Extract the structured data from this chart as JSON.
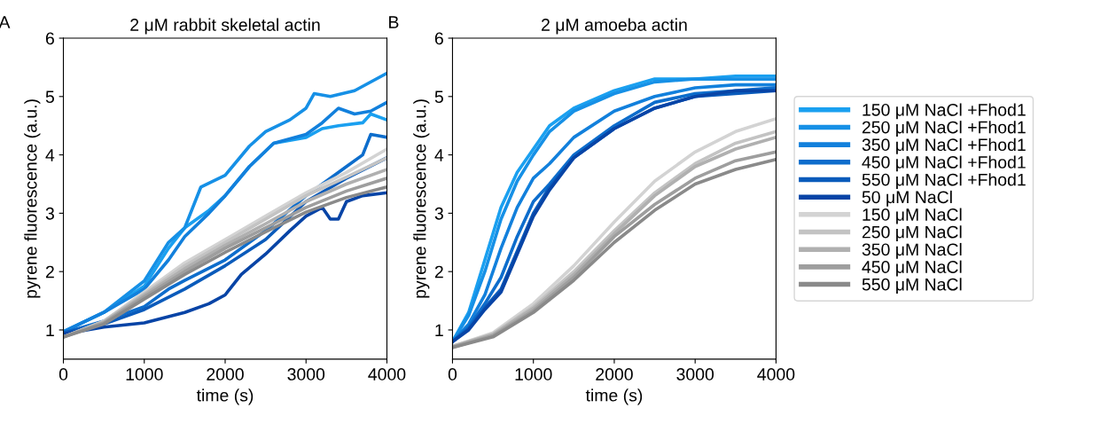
{
  "chart_data": [
    {
      "type": "line",
      "title": "2 μM rabbit skeletal actin",
      "xlabel": "time (s)",
      "ylabel": "pyrene fluorescence (a.u.)",
      "annotations": [
        "A"
      ],
      "xlim": [
        0,
        4000
      ],
      "ylim": [
        0.5,
        6
      ],
      "xticks": [
        0,
        1000,
        2000,
        3000,
        4000
      ],
      "yticks": [
        1,
        2,
        3,
        4,
        5,
        6
      ],
      "grid": false,
      "legend": false,
      "marker": "none",
      "line_style": "solid",
      "series": [
        {
          "color": "#1aa0f0",
          "x": [
            0,
            500,
            1000,
            1300,
            1500,
            1800,
            2000,
            2300,
            2600,
            3000,
            3200,
            3400,
            3700,
            3800,
            4000
          ],
          "values": [
            0.97,
            1.3,
            1.75,
            2.4,
            2.75,
            3.05,
            3.3,
            3.8,
            4.2,
            4.3,
            4.45,
            4.5,
            4.55,
            4.7,
            4.6
          ]
        },
        {
          "color": "#1690e6",
          "x": [
            0,
            500,
            1000,
            1300,
            1500,
            1700,
            2000,
            2300,
            2500,
            2800,
            3000,
            3100,
            3300,
            3600,
            4000
          ],
          "values": [
            0.97,
            1.3,
            1.84,
            2.5,
            2.75,
            3.45,
            3.65,
            4.15,
            4.4,
            4.6,
            4.8,
            5.05,
            5.0,
            5.1,
            5.4
          ]
        },
        {
          "color": "#1280dc",
          "x": [
            0,
            500,
            1000,
            1300,
            1500,
            1800,
            2000,
            2300,
            2600,
            3000,
            3200,
            3400,
            3600,
            3800,
            4000
          ],
          "values": [
            0.97,
            1.3,
            1.7,
            2.2,
            2.6,
            3.0,
            3.3,
            3.8,
            4.2,
            4.35,
            4.55,
            4.8,
            4.7,
            4.75,
            4.9
          ]
        },
        {
          "color": "#0d6dcc",
          "x": [
            0,
            500,
            1000,
            1300,
            1500,
            2000,
            2500,
            3000,
            3300,
            3500,
            3700,
            3800,
            4000
          ],
          "values": [
            0.95,
            1.15,
            1.4,
            1.7,
            1.85,
            2.2,
            2.7,
            3.3,
            3.6,
            3.8,
            4.0,
            4.35,
            4.3
          ]
        },
        {
          "color": "#0a5bbb",
          "x": [
            0,
            500,
            1000,
            1500,
            2000,
            2500,
            3000,
            3500,
            4000
          ],
          "values": [
            0.95,
            1.1,
            1.35,
            1.7,
            2.1,
            2.55,
            3.2,
            3.6,
            3.95
          ]
        },
        {
          "color": "#0744a6",
          "x": [
            0,
            500,
            1000,
            1500,
            1800,
            2000,
            2200,
            2500,
            2800,
            3000,
            3200,
            3300,
            3400,
            3500,
            3700,
            4000
          ],
          "values": [
            0.93,
            1.05,
            1.12,
            1.3,
            1.45,
            1.6,
            1.95,
            2.3,
            2.7,
            2.95,
            3.1,
            2.9,
            2.9,
            3.2,
            3.3,
            3.35
          ]
        },
        {
          "color": "#d3d3d3",
          "x": [
            0,
            500,
            1000,
            1500,
            2000,
            2500,
            3000,
            3500,
            4000
          ],
          "values": [
            0.88,
            1.15,
            1.65,
            2.15,
            2.55,
            2.95,
            3.35,
            3.7,
            4.1
          ]
        },
        {
          "color": "#c3c3c3",
          "x": [
            0,
            500,
            1000,
            1500,
            2000,
            2500,
            3000,
            3500,
            4000
          ],
          "values": [
            0.88,
            1.15,
            1.62,
            2.1,
            2.5,
            2.9,
            3.3,
            3.62,
            3.95
          ]
        },
        {
          "color": "#b0b0b0",
          "x": [
            0,
            500,
            1000,
            1500,
            2000,
            2500,
            3000,
            3500,
            4000
          ],
          "values": [
            0.88,
            1.13,
            1.6,
            2.05,
            2.45,
            2.82,
            3.2,
            3.5,
            3.75
          ]
        },
        {
          "color": "#9e9e9e",
          "x": [
            0,
            500,
            1000,
            1500,
            2000,
            2500,
            3000,
            3500,
            4000
          ],
          "values": [
            0.88,
            1.12,
            1.57,
            2.0,
            2.4,
            2.75,
            3.1,
            3.38,
            3.6
          ]
        },
        {
          "color": "#8a8a8a",
          "x": [
            0,
            500,
            1000,
            1500,
            2000,
            2500,
            3000,
            3500,
            4000
          ],
          "values": [
            0.88,
            1.1,
            1.53,
            1.95,
            2.33,
            2.68,
            3.02,
            3.27,
            3.45
          ]
        }
      ]
    },
    {
      "type": "line",
      "title": "2 μM amoeba actin",
      "xlabel": "time (s)",
      "ylabel": "pyrene fluorescence (a.u.)",
      "annotations": [
        "B"
      ],
      "xlim": [
        0,
        4000
      ],
      "ylim": [
        0.5,
        6
      ],
      "xticks": [
        0,
        1000,
        2000,
        3000,
        4000
      ],
      "yticks": [
        1,
        2,
        3,
        4,
        5,
        6
      ],
      "grid": false,
      "legend": "right",
      "marker": "none",
      "line_style": "solid",
      "series": [
        {
          "name": "150 μM NaCl +Fhod1",
          "color": "#1aa0f0",
          "x": [
            0,
            200,
            400,
            600,
            800,
            1000,
            1200,
            1500,
            2000,
            2500,
            3000,
            3500,
            4000
          ],
          "values": [
            0.8,
            1.3,
            2.2,
            3.1,
            3.7,
            4.1,
            4.5,
            4.8,
            5.1,
            5.3,
            5.3,
            5.35,
            5.35
          ]
        },
        {
          "name": "250 μM NaCl +Fhod1",
          "color": "#1690e6",
          "x": [
            0,
            200,
            400,
            600,
            800,
            1000,
            1200,
            1500,
            2000,
            2500,
            3000,
            3500,
            4000
          ],
          "values": [
            0.8,
            1.25,
            2.0,
            2.9,
            3.55,
            4.0,
            4.4,
            4.75,
            5.05,
            5.25,
            5.3,
            5.3,
            5.3
          ]
        },
        {
          "name": "350 μM NaCl +Fhod1",
          "color": "#1280dc",
          "x": [
            0,
            200,
            400,
            600,
            800,
            1000,
            1200,
            1500,
            2000,
            2500,
            3000,
            3500,
            4000
          ],
          "values": [
            0.8,
            1.1,
            1.6,
            2.4,
            3.1,
            3.6,
            3.85,
            4.3,
            4.75,
            5.0,
            5.15,
            5.2,
            5.2
          ]
        },
        {
          "name": "450 μM NaCl +Fhod1",
          "color": "#0d6dcc",
          "x": [
            0,
            200,
            400,
            600,
            800,
            1000,
            1200,
            1500,
            2000,
            2500,
            3000,
            3500,
            4000
          ],
          "values": [
            0.8,
            1.05,
            1.45,
            1.9,
            2.6,
            3.2,
            3.5,
            4.0,
            4.5,
            4.9,
            5.05,
            5.1,
            5.15
          ]
        },
        {
          "name": "550 μM NaCl +Fhod1",
          "color": "#0a5bbb",
          "x": [
            0,
            200,
            400,
            600,
            800,
            1000,
            1200,
            1500,
            2000,
            2500,
            3000,
            3500,
            4000
          ],
          "values": [
            0.8,
            1.02,
            1.38,
            1.7,
            2.35,
            3.0,
            3.45,
            3.95,
            4.45,
            4.8,
            5.0,
            5.05,
            5.1
          ]
        },
        {
          "name": "50 μM NaCl",
          "color": "#0744a6",
          "x": [
            0,
            200,
            400,
            600,
            800,
            1000,
            1200,
            1500,
            2000,
            2500,
            3000,
            3500,
            4000
          ],
          "values": [
            0.8,
            1.0,
            1.35,
            1.65,
            2.3,
            2.95,
            3.4,
            3.95,
            4.45,
            4.8,
            5.0,
            5.1,
            5.1
          ]
        },
        {
          "name": "150 μM NaCl",
          "color": "#d3d3d3",
          "x": [
            0,
            500,
            1000,
            1500,
            2000,
            2500,
            3000,
            3500,
            4000
          ],
          "values": [
            0.72,
            0.95,
            1.45,
            2.1,
            2.85,
            3.55,
            4.05,
            4.4,
            4.62
          ]
        },
        {
          "name": "250 μM NaCl",
          "color": "#c3c3c3",
          "x": [
            0,
            500,
            1000,
            1500,
            2000,
            2500,
            3000,
            3500,
            4000
          ],
          "values": [
            0.72,
            0.93,
            1.4,
            2.0,
            2.7,
            3.35,
            3.85,
            4.2,
            4.4
          ]
        },
        {
          "name": "350 μM NaCl",
          "color": "#b0b0b0",
          "x": [
            0,
            500,
            1000,
            1500,
            2000,
            2500,
            3000,
            3500,
            4000
          ],
          "values": [
            0.72,
            0.92,
            1.37,
            1.95,
            2.65,
            3.3,
            3.8,
            4.1,
            4.3
          ]
        },
        {
          "name": "450 μM NaCl",
          "color": "#9e9e9e",
          "x": [
            0,
            500,
            1000,
            1500,
            2000,
            2500,
            3000,
            3500,
            4000
          ],
          "values": [
            0.7,
            0.9,
            1.33,
            1.9,
            2.6,
            3.15,
            3.6,
            3.9,
            4.05
          ]
        },
        {
          "name": "550 μM NaCl",
          "color": "#8a8a8a",
          "x": [
            0,
            500,
            1000,
            1500,
            2000,
            2500,
            3000,
            3500,
            4000
          ],
          "values": [
            0.7,
            0.88,
            1.3,
            1.85,
            2.5,
            3.05,
            3.5,
            3.75,
            3.92
          ]
        }
      ]
    }
  ]
}
